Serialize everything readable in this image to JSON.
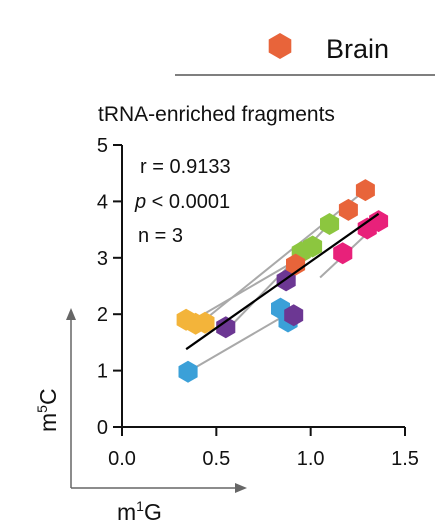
{
  "legend": {
    "label": "Brain",
    "marker_color": "#e8643a"
  },
  "chart_data": {
    "type": "scatter",
    "title": "tRNA-enriched fragments",
    "xlabel_parts": [
      "m",
      "1",
      "G"
    ],
    "ylabel_parts": [
      "m",
      "5",
      "C"
    ],
    "xlim": [
      0,
      1.5
    ],
    "ylim": [
      0,
      5
    ],
    "x_ticks": [
      "0.0",
      "0.5",
      "1.0",
      "1.5"
    ],
    "y_ticks": [
      "0",
      "1",
      "2",
      "3",
      "4",
      "5"
    ],
    "x_tick_values": [
      0,
      0.5,
      1.0,
      1.5
    ],
    "y_tick_values": [
      0,
      1,
      2,
      3,
      4,
      5
    ],
    "stats": {
      "r": "r = 0.9133",
      "p_symbol": "p",
      "p_rest": " < 0.0001",
      "n": "n = 3"
    },
    "fit_line": {
      "x": [
        0.34,
        1.36
      ],
      "y": [
        1.38,
        3.78
      ],
      "color": "#000000"
    },
    "groups": [
      {
        "color": "#f3b43a",
        "points": [
          {
            "x": 0.34,
            "y": 1.9
          },
          {
            "x": 0.39,
            "y": 1.83
          },
          {
            "x": 0.44,
            "y": 1.85
          }
        ]
      },
      {
        "color": "#3ba0d8",
        "points": [
          {
            "x": 0.35,
            "y": 0.98
          },
          {
            "x": 0.84,
            "y": 2.1
          },
          {
            "x": 0.88,
            "y": 1.87
          }
        ]
      },
      {
        "color": "#6c3793",
        "points": [
          {
            "x": 0.55,
            "y": 1.77
          },
          {
            "x": 0.87,
            "y": 2.6
          },
          {
            "x": 0.91,
            "y": 1.98
          }
        ]
      },
      {
        "color": "#8cc63f",
        "points": [
          {
            "x": 0.95,
            "y": 3.1
          },
          {
            "x": 1.01,
            "y": 3.2
          },
          {
            "x": 1.1,
            "y": 3.6
          }
        ]
      },
      {
        "color": "#e8643a",
        "points": [
          {
            "x": 0.92,
            "y": 2.88
          },
          {
            "x": 1.2,
            "y": 3.85
          },
          {
            "x": 1.29,
            "y": 4.2
          }
        ]
      },
      {
        "color": "#e8217a",
        "points": [
          {
            "x": 1.17,
            "y": 3.08
          },
          {
            "x": 1.3,
            "y": 3.52
          },
          {
            "x": 1.36,
            "y": 3.65
          }
        ]
      }
    ],
    "group_lines": [
      {
        "color": "#a9a9a9",
        "x": [
          0.33,
          0.92
        ],
        "y": [
          1.8,
          2.95
        ]
      },
      {
        "color": "#a9a9a9",
        "x": [
          0.4,
          1.29
        ],
        "y": [
          1.8,
          4.2
        ]
      },
      {
        "color": "#a9a9a9",
        "x": [
          0.35,
          0.9
        ],
        "y": [
          0.98,
          2.05
        ]
      },
      {
        "color": "#a9a9a9",
        "x": [
          0.55,
          1.1
        ],
        "y": [
          1.7,
          3.6
        ]
      },
      {
        "color": "#a9a9a9",
        "x": [
          1.05,
          1.37
        ],
        "y": [
          2.65,
          3.65
        ]
      }
    ],
    "grid": false
  }
}
